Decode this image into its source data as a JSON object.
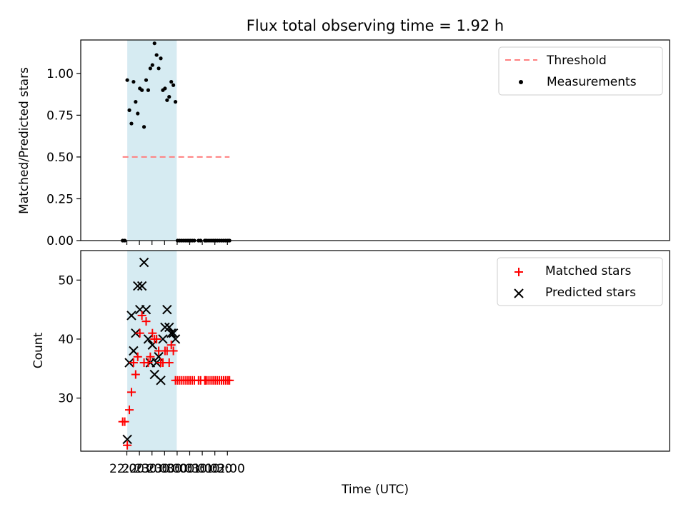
{
  "figure": {
    "title": "Flux total observing time = 1.92 h"
  },
  "colors": {
    "threshold": "#ff7f7f",
    "measurement": "#000000",
    "matched": "#ff0000",
    "predicted": "#000000",
    "span": "#add8e6"
  },
  "chart_data": [
    {
      "type": "scatter",
      "panel": "top",
      "title": "Flux total observing time = 1.92 h",
      "xlabel": "",
      "ylabel": "Matched/Predicted stars",
      "xlim_minutes_from_2200": [
        -110,
        1295
      ],
      "ylim": [
        0,
        1.2
      ],
      "yticks": [
        0.0,
        0.25,
        0.5,
        0.75,
        1.0
      ],
      "yticklabels": [
        "0.00",
        "0.25",
        "0.50",
        "0.75",
        "1.00"
      ],
      "legend": {
        "placement": "top-right",
        "entries": [
          "Threshold",
          "Measurements"
        ]
      },
      "shaded_interval": {
        "from": "22:01",
        "to": "23:59",
        "color": "#add8e6"
      },
      "threshold": {
        "name": "Threshold",
        "value": 0.5,
        "x_from": "21:50",
        "x_to": "02:05",
        "style": "dashed"
      },
      "series": [
        {
          "name": "Measurements",
          "marker": "dot",
          "x": [
            "21:50",
            "21:55",
            "22:01",
            "22:06",
            "22:11",
            "22:16",
            "22:21",
            "22:26",
            "22:31",
            "22:36",
            "22:41",
            "22:46",
            "22:51",
            "22:56",
            "23:01",
            "23:06",
            "23:11",
            "23:16",
            "23:21",
            "23:26",
            "23:31",
            "23:36",
            "23:41",
            "23:46",
            "23:51",
            "23:56",
            "00:01",
            "00:06",
            "00:11",
            "00:16",
            "00:21",
            "00:26",
            "00:31",
            "00:36",
            "00:41",
            "00:51",
            "00:56",
            "01:06",
            "01:07",
            "01:11",
            "01:16",
            "01:21",
            "01:26",
            "01:31",
            "01:36",
            "01:41",
            "01:46",
            "01:51",
            "01:56",
            "02:01",
            "02:05"
          ],
          "y": [
            0.0,
            0.0,
            0.96,
            0.78,
            0.7,
            0.95,
            0.83,
            0.76,
            0.91,
            0.9,
            0.68,
            0.96,
            0.9,
            1.03,
            1.05,
            1.18,
            1.11,
            1.03,
            1.09,
            0.9,
            0.91,
            0.84,
            0.86,
            0.95,
            0.93,
            0.83,
            0.0,
            0.0,
            0.0,
            0.0,
            0.0,
            0.0,
            0.0,
            0.0,
            0.0,
            0.0,
            0.0,
            0.0,
            0.0,
            0.0,
            0.0,
            0.0,
            0.0,
            0.0,
            0.0,
            0.0,
            0.0,
            0.0,
            0.0,
            0.0,
            0.0
          ]
        }
      ]
    },
    {
      "type": "scatter",
      "panel": "bottom",
      "title": "",
      "xlabel": "Time (UTC)",
      "ylabel": "Count",
      "xlim_minutes_from_2200": [
        -110,
        1295
      ],
      "ylim": [
        21,
        55
      ],
      "yticks": [
        30,
        40,
        50
      ],
      "xticks": [
        "22:00",
        "22:30",
        "23:00",
        "23:30",
        "00:00",
        "00:30",
        "01:00",
        "01:30",
        "02:00"
      ],
      "legend": {
        "placement": "top-right",
        "entries": [
          "Matched stars",
          "Predicted stars"
        ]
      },
      "shaded_interval": {
        "from": "22:01",
        "to": "23:59",
        "color": "#add8e6"
      },
      "series": [
        {
          "name": "Matched stars",
          "marker": "plus",
          "x": [
            "21:50",
            "21:55",
            "22:01",
            "22:06",
            "22:11",
            "22:16",
            "22:21",
            "22:26",
            "22:31",
            "22:36",
            "22:41",
            "22:46",
            "22:51",
            "22:56",
            "23:01",
            "23:06",
            "23:11",
            "23:16",
            "23:21",
            "23:26",
            "23:31",
            "23:36",
            "23:41",
            "23:46",
            "23:51",
            "23:56",
            "00:01",
            "00:06",
            "00:11",
            "00:16",
            "00:21",
            "00:26",
            "00:31",
            "00:36",
            "00:41",
            "00:51",
            "00:56",
            "01:06",
            "01:07",
            "01:11",
            "01:16",
            "01:21",
            "01:26",
            "01:31",
            "01:36",
            "01:41",
            "01:46",
            "01:51",
            "01:56",
            "02:01",
            "02:05"
          ],
          "y": [
            26,
            26,
            22,
            28,
            31,
            36,
            34,
            37,
            41,
            44,
            36,
            43,
            36,
            37,
            41,
            40,
            40,
            38,
            36,
            36,
            38,
            38,
            36,
            39,
            38,
            33,
            33,
            33,
            33,
            33,
            33,
            33,
            33,
            33,
            33,
            33,
            33,
            33,
            33,
            33,
            33,
            33,
            33,
            33,
            33,
            33,
            33,
            33,
            33,
            33,
            33
          ]
        },
        {
          "name": "Predicted stars",
          "marker": "x",
          "x": [
            "22:01",
            "22:06",
            "22:11",
            "22:16",
            "22:21",
            "22:26",
            "22:31",
            "22:36",
            "22:41",
            "22:46",
            "22:51",
            "22:56",
            "23:01",
            "23:06",
            "23:11",
            "23:16",
            "23:21",
            "23:26",
            "23:31",
            "23:36",
            "23:41",
            "23:46",
            "23:51",
            "23:56"
          ],
          "y": [
            23,
            36,
            44,
            38,
            41,
            49,
            45,
            49,
            53,
            45,
            40,
            36,
            39,
            34,
            36,
            37,
            33,
            40,
            42,
            45,
            42,
            41,
            41,
            40
          ]
        }
      ]
    }
  ]
}
